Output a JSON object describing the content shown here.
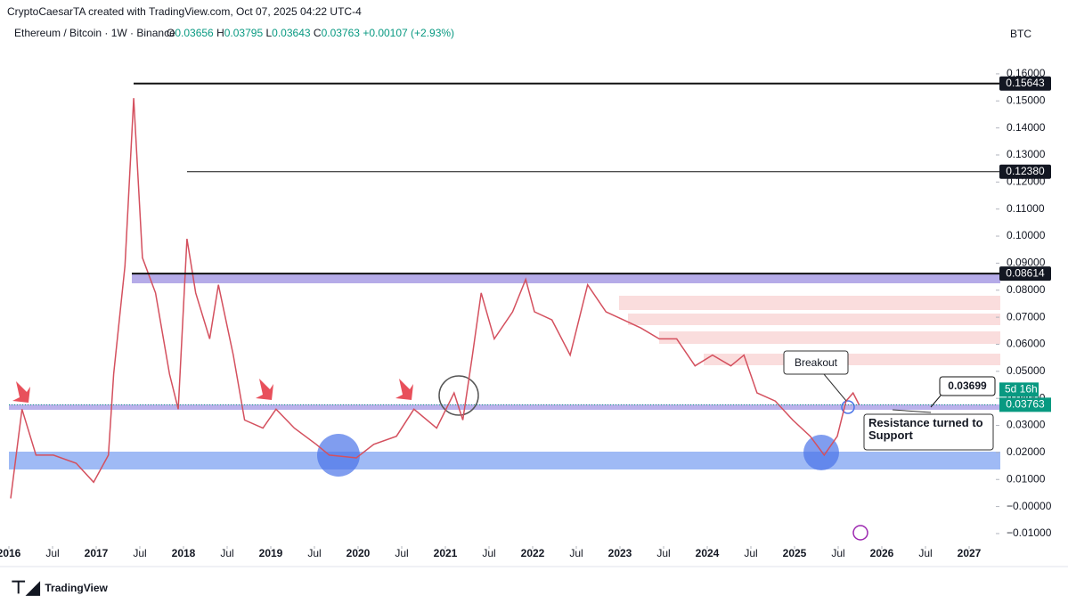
{
  "header": {
    "credit": "CryptoCaesarTA created with TradingView.com, Oct 07, 2025 04:22 UTC-4",
    "symbol": "Ethereum / Bitcoin · 1W · Binance",
    "ohlc": [
      {
        "key": "O",
        "value": "0.03656"
      },
      {
        "key": "H",
        "value": "0.03795"
      },
      {
        "key": "L",
        "value": "0.03643"
      },
      {
        "key": "C",
        "value": "0.03763"
      }
    ],
    "change": "+0.00107 (+2.93%)",
    "currency": "BTC"
  },
  "chart_data": {
    "type": "line",
    "color": "#d4505e",
    "x": [
      2016.02,
      2016.15,
      2016.31,
      2016.51,
      2016.77,
      2016.97,
      2017.14,
      2017.2,
      2017.33,
      2017.43,
      2017.53,
      2017.68,
      2017.84,
      2017.94,
      2018.04,
      2018.14,
      2018.3,
      2018.4,
      2018.57,
      2018.7,
      2018.91,
      2019.06,
      2019.27,
      2019.52,
      2019.67,
      2019.98,
      2020.18,
      2020.44,
      2020.64,
      2020.9,
      2021.1,
      2021.2,
      2021.31,
      2021.41,
      2021.56,
      2021.77,
      2021.92,
      2022.02,
      2022.22,
      2022.43,
      2022.63,
      2022.84,
      2023.04,
      2023.24,
      2023.45,
      2023.65,
      2023.86,
      2024.06,
      2024.27,
      2024.42,
      2024.57,
      2024.78,
      2024.98,
      2025.18,
      2025.34,
      2025.49,
      2025.59,
      2025.67,
      2025.74
    ],
    "series": [
      {
        "name": "ETH/BTC",
        "values": [
          0.003,
          0.036,
          0.019,
          0.019,
          0.016,
          0.009,
          0.019,
          0.049,
          0.089,
          0.151,
          0.092,
          0.079,
          0.049,
          0.036,
          0.099,
          0.079,
          0.062,
          0.082,
          0.056,
          0.032,
          0.029,
          0.036,
          0.029,
          0.023,
          0.019,
          0.018,
          0.023,
          0.026,
          0.036,
          0.029,
          0.042,
          0.032,
          0.056,
          0.079,
          0.062,
          0.072,
          0.084,
          0.072,
          0.069,
          0.056,
          0.082,
          0.072,
          0.069,
          0.066,
          0.062,
          0.062,
          0.052,
          0.056,
          0.052,
          0.056,
          0.042,
          0.039,
          0.032,
          0.026,
          0.019,
          0.026,
          0.039,
          0.042,
          0.03763
        ]
      }
    ],
    "xlim": [
      2016,
      2027.306
    ],
    "xticks": [
      {
        "value": 2016,
        "label": "2016"
      },
      {
        "value": 2016.5,
        "label": "Jul"
      },
      {
        "value": 2017,
        "label": "2017"
      },
      {
        "value": 2017.5,
        "label": "Jul"
      },
      {
        "value": 2018,
        "label": "2018"
      },
      {
        "value": 2018.5,
        "label": "Jul"
      },
      {
        "value": 2019,
        "label": "2019"
      },
      {
        "value": 2019.5,
        "label": "Jul"
      },
      {
        "value": 2020,
        "label": "2020"
      },
      {
        "value": 2020.5,
        "label": "Jul"
      },
      {
        "value": 2021,
        "label": "2021"
      },
      {
        "value": 2021.5,
        "label": "Jul"
      },
      {
        "value": 2022,
        "label": "2022"
      },
      {
        "value": 2022.5,
        "label": "Jul"
      },
      {
        "value": 2023,
        "label": "2023"
      },
      {
        "value": 2023.5,
        "label": "Jul"
      },
      {
        "value": 2024,
        "label": "2024"
      },
      {
        "value": 2024.5,
        "label": "Jul"
      },
      {
        "value": 2025,
        "label": "2025"
      },
      {
        "value": 2025.5,
        "label": "Jul"
      },
      {
        "value": 2026,
        "label": "2026"
      },
      {
        "value": 2026.5,
        "label": "Jul"
      },
      {
        "value": 2027,
        "label": "2027"
      }
    ],
    "ylim": [
      -0.0143,
      0.1715
    ],
    "yticks": [
      {
        "value": -0.01,
        "label": "−0.01000"
      },
      {
        "value": 0,
        "label": "−0.00000"
      },
      {
        "value": 0.01,
        "label": "0.01000"
      },
      {
        "value": 0.02,
        "label": "0.02000"
      },
      {
        "value": 0.03,
        "label": "0.03000"
      },
      {
        "value": 0.04,
        "label": "0.04000"
      },
      {
        "value": 0.05,
        "label": "0.05000"
      },
      {
        "value": 0.06,
        "label": "0.06000"
      },
      {
        "value": 0.07,
        "label": "0.07000"
      },
      {
        "value": 0.08,
        "label": "0.08000"
      },
      {
        "value": 0.09,
        "label": "0.09000"
      },
      {
        "value": 0.1,
        "label": "0.10000"
      },
      {
        "value": 0.11,
        "label": "0.11000"
      },
      {
        "value": 0.12,
        "label": "0.12000"
      },
      {
        "value": 0.13,
        "label": "0.13000"
      },
      {
        "value": 0.14,
        "label": "0.14000"
      },
      {
        "value": 0.15,
        "label": "0.15000"
      },
      {
        "value": 0.16,
        "label": "0.16000"
      }
    ],
    "grid": false,
    "levels": [
      0.15643,
      {
        "value": 0.1238,
        "label": "0.12380"
      },
      0.08614
    ],
    "last_price": 0.03763,
    "countdown": "5d 16h",
    "annotations": {
      "breakout": "Breakout",
      "target": 0.03699,
      "support": "Resistance turned to Support"
    }
  },
  "footer": {
    "brand": "TradingView"
  }
}
